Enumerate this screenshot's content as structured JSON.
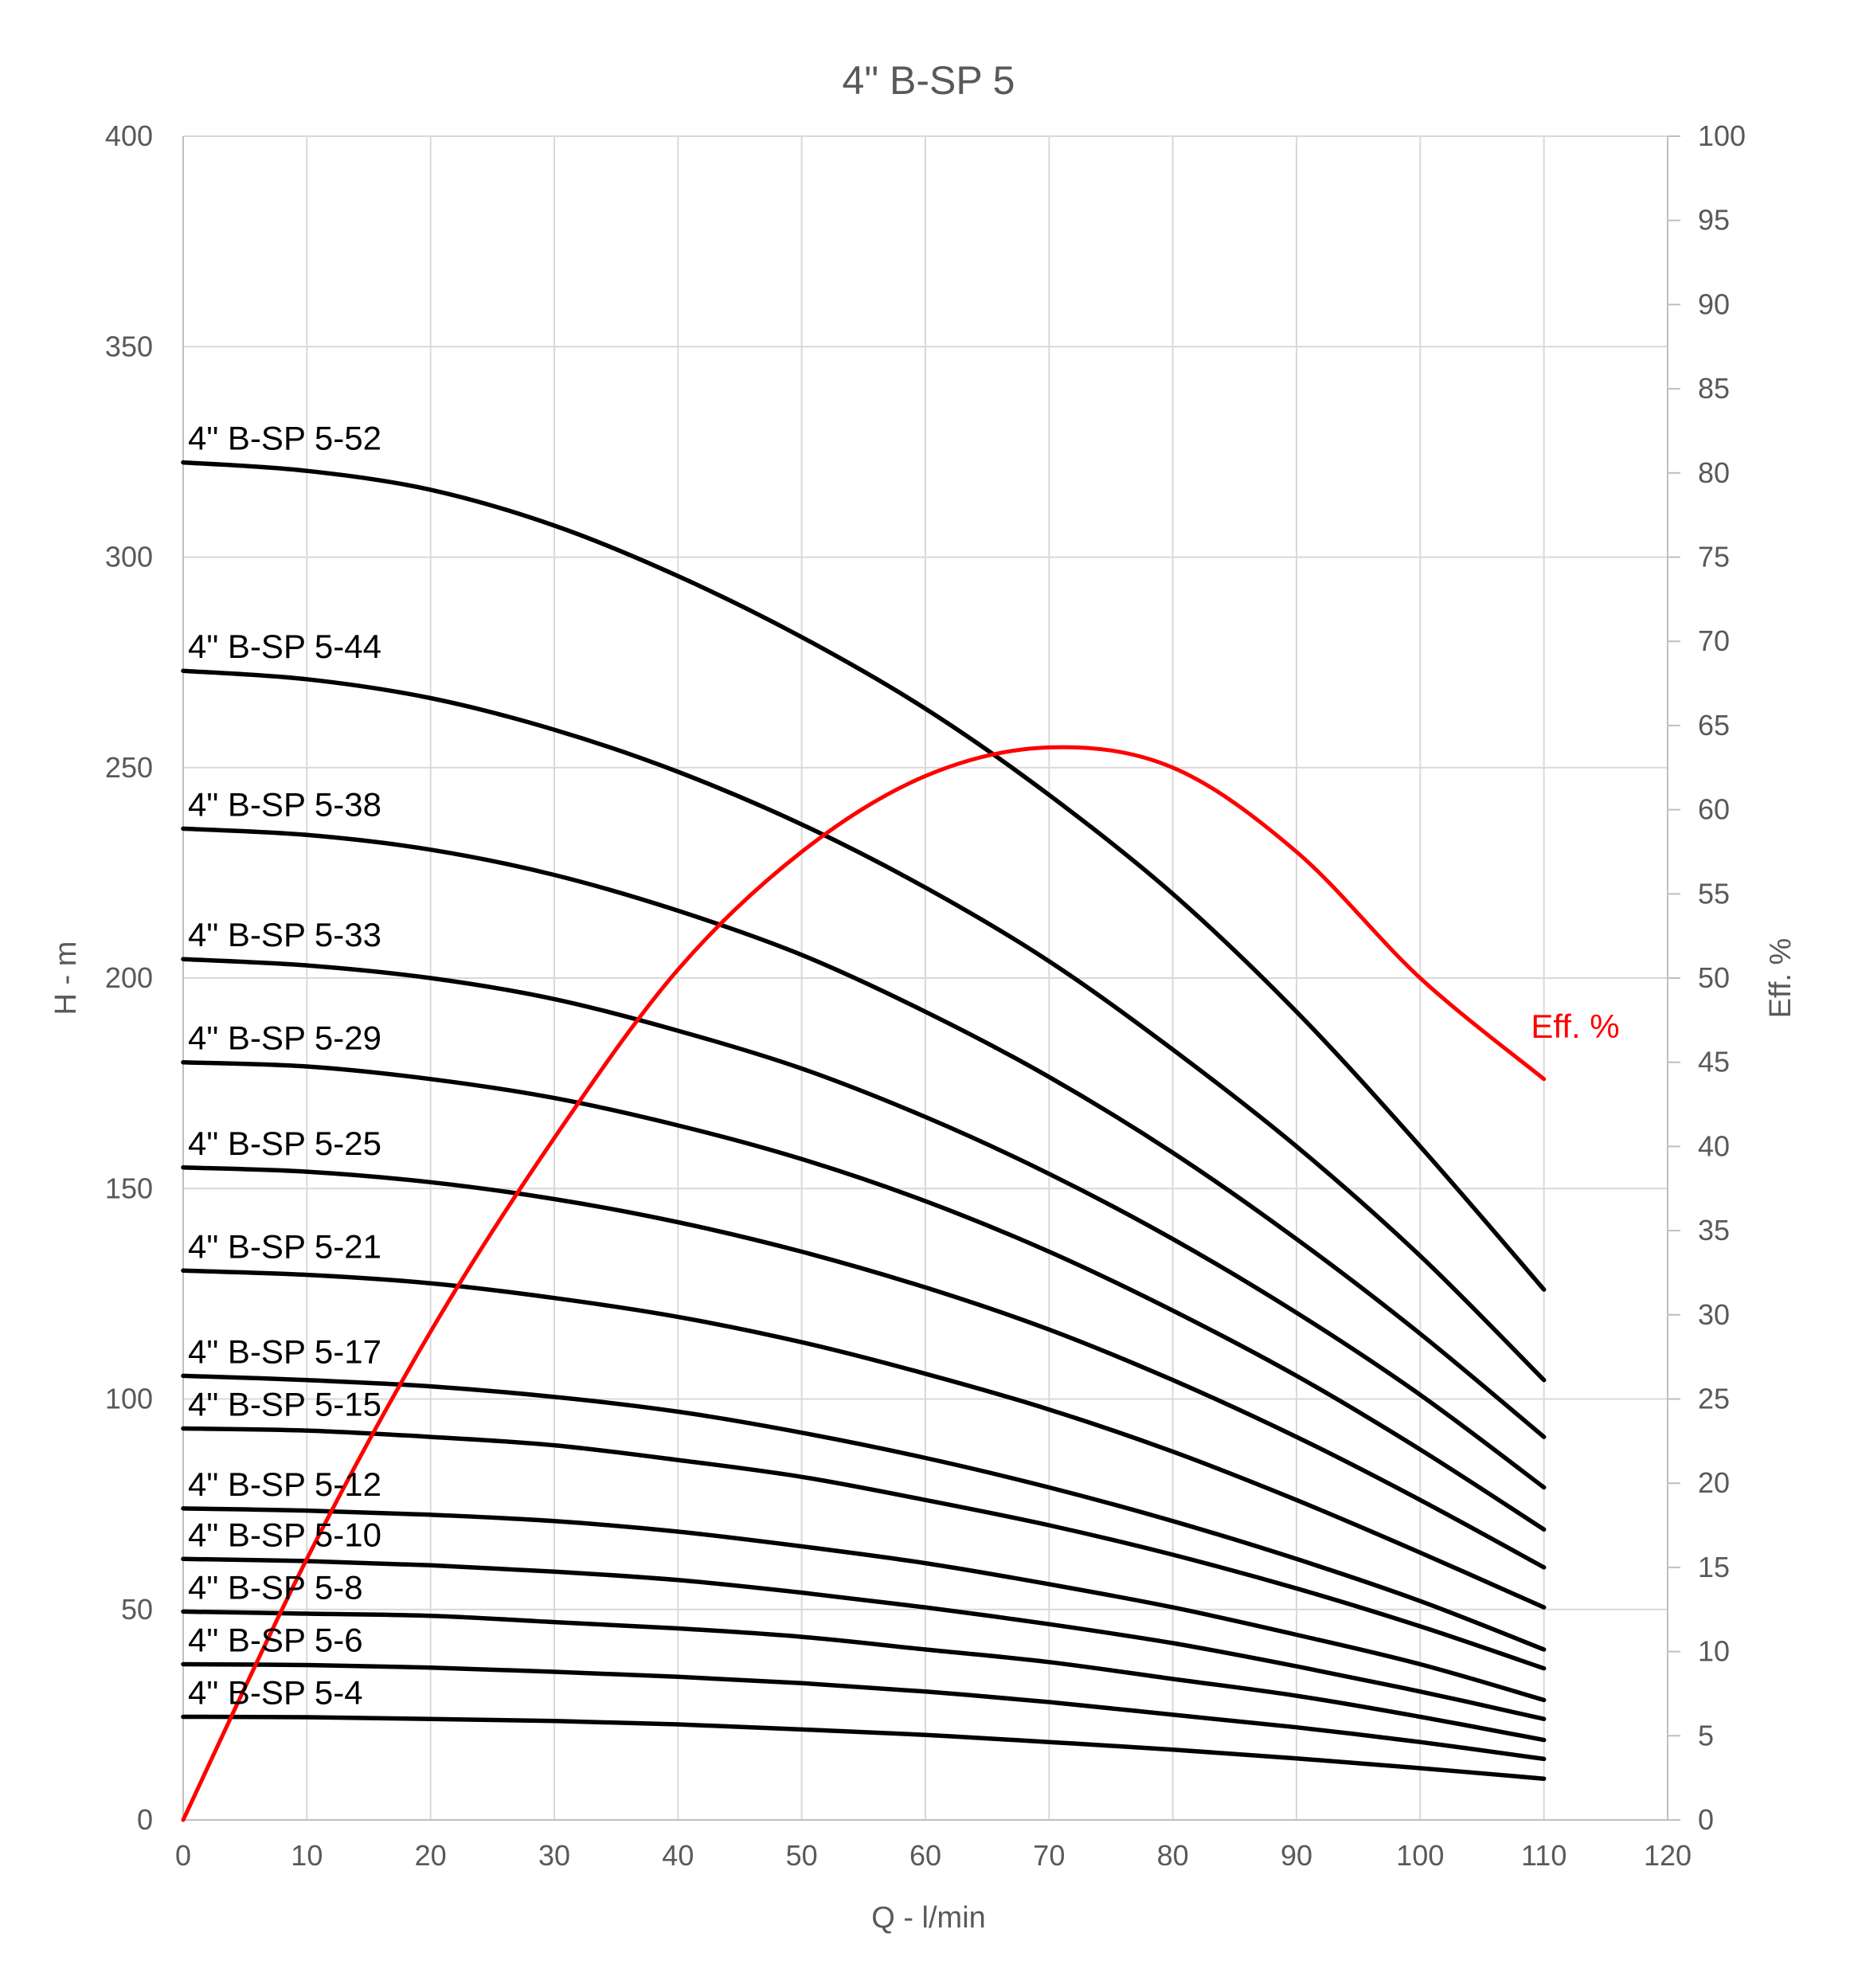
{
  "chart_data": {
    "type": "line",
    "title": "4\" B-SP 5",
    "xlabel": "Q - l/min",
    "ylabel": "H - m",
    "y2label": "Eff. %",
    "xlim": [
      0,
      120
    ],
    "ylim": [
      0,
      400
    ],
    "y2lim": [
      0,
      100
    ],
    "x_ticks": [
      0,
      10,
      20,
      30,
      40,
      50,
      60,
      70,
      80,
      90,
      100,
      110,
      120
    ],
    "y_ticks": [
      0,
      50,
      100,
      150,
      200,
      250,
      300,
      350,
      400
    ],
    "y2_ticks": [
      0,
      5,
      10,
      15,
      20,
      25,
      30,
      35,
      40,
      45,
      50,
      55,
      60,
      65,
      70,
      75,
      80,
      85,
      90,
      95,
      100
    ],
    "grid": true,
    "x": [
      0,
      10,
      20,
      30,
      40,
      50,
      60,
      70,
      80,
      90,
      100,
      110
    ],
    "series": [
      {
        "name": "4\" B-SP 5-52",
        "axis": "left",
        "color": "#000000",
        "values": [
          322.5,
          320.5,
          316,
          307.5,
          295.5,
          281,
          264,
          243.5,
          220,
          192,
          160,
          126
        ]
      },
      {
        "name": "4\" B-SP 5-44",
        "axis": "left",
        "color": "#000000",
        "values": [
          273,
          271,
          266.5,
          259,
          249,
          236.5,
          221.5,
          204,
          183,
          160,
          134,
          104.5
        ]
      },
      {
        "name": "4\" B-SP 5-38",
        "axis": "left",
        "color": "#000000",
        "values": [
          235.5,
          234,
          230.5,
          224.5,
          216,
          205.5,
          192,
          176.5,
          158.5,
          138,
          115.5,
          91
        ]
      },
      {
        "name": "4\" B-SP 5-33",
        "axis": "left",
        "color": "#000000",
        "values": [
          204.5,
          203,
          200,
          195,
          187.5,
          178.5,
          167,
          153.5,
          138,
          120.5,
          101,
          79
        ]
      },
      {
        "name": "4\" B-SP 5-29",
        "axis": "left",
        "color": "#000000",
        "values": [
          180,
          179,
          176,
          171.5,
          165,
          157,
          147,
          135,
          121,
          105.5,
          88,
          69
        ]
      },
      {
        "name": "4\" B-SP 5-25",
        "axis": "left",
        "color": "#000000",
        "values": [
          155,
          154,
          151.5,
          147.5,
          142,
          135,
          126.5,
          116.5,
          104.5,
          91,
          76,
          60
        ]
      },
      {
        "name": "4\" B-SP 5-21",
        "axis": "left",
        "color": "#000000",
        "values": [
          130.5,
          129.5,
          127.5,
          124,
          119.5,
          113.5,
          106,
          97.5,
          87.5,
          76,
          63.5,
          50.5
        ]
      },
      {
        "name": "4\" B-SP 5-17",
        "axis": "left",
        "color": "#000000",
        "values": [
          105.5,
          104.5,
          103,
          100.5,
          97,
          92,
          86,
          79,
          71,
          62,
          52,
          40.5
        ]
      },
      {
        "name": "4\" B-SP 5-15",
        "axis": "left",
        "color": "#000000",
        "values": [
          93,
          92.5,
          91,
          89,
          85.5,
          81.5,
          76,
          70,
          63,
          55,
          46,
          36
        ]
      },
      {
        "name": "4\" B-SP 5-12",
        "axis": "left",
        "color": "#000000",
        "values": [
          74,
          73.5,
          72.5,
          71,
          68.5,
          65,
          61,
          56,
          50.5,
          44,
          37,
          28.5
        ]
      },
      {
        "name": "4\" B-SP 5-10",
        "axis": "left",
        "color": "#000000",
        "values": [
          62,
          61.5,
          60.5,
          59,
          57,
          54,
          50.5,
          46.5,
          42,
          36.5,
          30.5,
          24
        ]
      },
      {
        "name": "4\" B-SP 5-8",
        "axis": "left",
        "color": "#000000",
        "values": [
          49.5,
          49,
          48.5,
          47,
          45.5,
          43.5,
          40.5,
          37.5,
          33.5,
          29.5,
          24.5,
          19
        ]
      },
      {
        "name": "4\" B-SP 5-6",
        "axis": "left",
        "color": "#000000",
        "values": [
          37,
          36.8,
          36.2,
          35.2,
          34,
          32.5,
          30.5,
          28,
          25,
          22,
          18.5,
          14.5
        ]
      },
      {
        "name": "4\" B-SP 5-4",
        "axis": "left",
        "color": "#000000",
        "values": [
          24.5,
          24.4,
          24,
          23.5,
          22.7,
          21.5,
          20.2,
          18.5,
          16.7,
          14.6,
          12.3,
          9.8
        ]
      },
      {
        "name": "Eff. %",
        "axis": "right",
        "color": "#ff0000",
        "values": [
          0,
          15.5,
          29,
          40.5,
          50.5,
          57.5,
          62,
          63.7,
          62.5,
          57.5,
          50,
          44
        ]
      }
    ],
    "legend": "labels on lines"
  }
}
